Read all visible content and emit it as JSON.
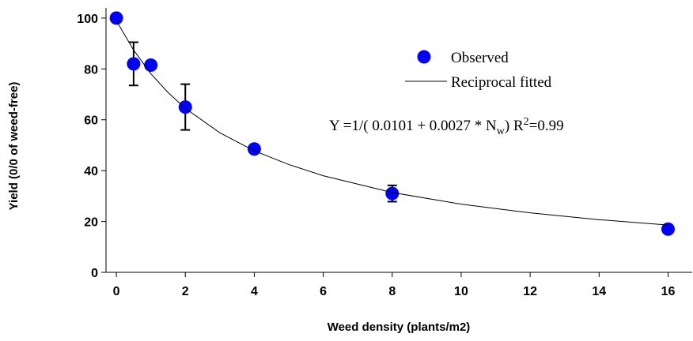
{
  "chart_data": {
    "type": "scatter",
    "xlabel": "Weed density (plants/m2)",
    "ylabel": "Yield (0/0 of weed-free)",
    "xlim": [
      -0.3,
      16.7
    ],
    "ylim": [
      0,
      104
    ],
    "xticks": [
      0,
      2,
      4,
      6,
      8,
      10,
      12,
      14,
      16
    ],
    "yticks": [
      0,
      20,
      40,
      60,
      80,
      100
    ],
    "series": [
      {
        "name": "Observed",
        "color": "#0000ff",
        "x": [
          0,
          0.5,
          1,
          2,
          4,
          8,
          16
        ],
        "values": [
          100,
          82,
          81.5,
          65,
          48.5,
          31,
          17
        ],
        "errors": [
          null,
          8.5,
          null,
          9,
          null,
          3.2,
          null
        ]
      },
      {
        "name": "Reciprocal fitted",
        "color": "#000000",
        "type": "line",
        "x": [
          0,
          0.5,
          1,
          1.5,
          2,
          3,
          4,
          5,
          6,
          8,
          10,
          12,
          14,
          16
        ],
        "values": [
          99.0,
          87.4,
          78.1,
          70.7,
          64.5,
          54.9,
          47.8,
          42.4,
          38.0,
          31.4,
          26.8,
          23.4,
          20.7,
          18.6
        ]
      }
    ],
    "annotation": [
      "Y =1/( 0.0101 + 0.0027 * N",
      "w",
      ") R",
      "2",
      "=0.99"
    ]
  }
}
